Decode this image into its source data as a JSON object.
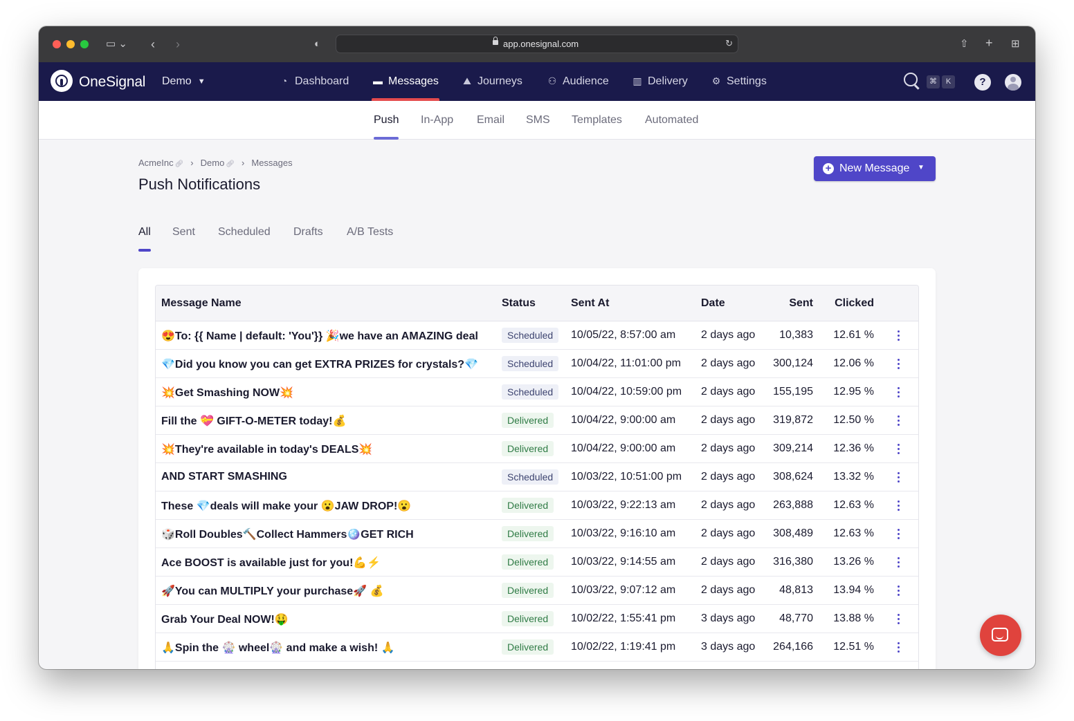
{
  "browser": {
    "url": "app.onesignal.com"
  },
  "topnav": {
    "logo_text": "OneSignal",
    "org": "Demo",
    "items": [
      {
        "label": "Dashboard",
        "icon": "dashboard-icon"
      },
      {
        "label": "Messages",
        "icon": "messages-icon"
      },
      {
        "label": "Journeys",
        "icon": "journeys-icon"
      },
      {
        "label": "Audience",
        "icon": "audience-icon"
      },
      {
        "label": "Delivery",
        "icon": "delivery-icon"
      },
      {
        "label": "Settings",
        "icon": "gear-icon"
      }
    ],
    "shortcut_keys": [
      "⌘",
      "K"
    ],
    "help_label": "?"
  },
  "subnav": {
    "items": [
      "Push",
      "In-App",
      "Email",
      "SMS",
      "Templates",
      "Automated"
    ],
    "active": "Push"
  },
  "breadcrumb": [
    "AcmeInc",
    "Demo",
    "Messages"
  ],
  "page_title": "Push Notifications",
  "new_message_label": "New Message",
  "tabs": {
    "items": [
      "All",
      "Sent",
      "Scheduled",
      "Drafts",
      "A/B Tests"
    ],
    "active": "All"
  },
  "table": {
    "columns": [
      "Message Name",
      "Status",
      "Sent At",
      "Date",
      "Sent",
      "Clicked"
    ],
    "rows": [
      {
        "name": "😍To: {{ Name | default: 'You'}} 🎉we have an AMAZING deal",
        "status": "Scheduled",
        "sent_at": "10/05/22, 8:57:00 am",
        "date": "2 days ago",
        "sent": "10,383",
        "clicked": "12.61 %"
      },
      {
        "name": "💎Did you know you can get EXTRA PRIZES for crystals?💎",
        "status": "Scheduled",
        "sent_at": "10/04/22, 11:01:00 pm",
        "date": "2 days ago",
        "sent": "300,124",
        "clicked": "12.06 %"
      },
      {
        "name": "💥Get Smashing NOW💥",
        "status": "Scheduled",
        "sent_at": "10/04/22, 10:59:00 pm",
        "date": "2 days ago",
        "sent": "155,195",
        "clicked": "12.95 %"
      },
      {
        "name": "Fill the 💝 GIFT-O-METER today!💰",
        "status": "Delivered",
        "sent_at": "10/04/22, 9:00:00 am",
        "date": "2 days ago",
        "sent": "319,872",
        "clicked": "12.50 %"
      },
      {
        "name": "💥They're available in today's DEALS💥",
        "status": "Delivered",
        "sent_at": "10/04/22, 9:00:00 am",
        "date": "2 days ago",
        "sent": "309,214",
        "clicked": "12.36 %"
      },
      {
        "name": "AND START SMASHING",
        "status": "Scheduled",
        "sent_at": "10/03/22, 10:51:00 pm",
        "date": "2 days ago",
        "sent": "308,624",
        "clicked": "13.32 %"
      },
      {
        "name": "These 💎deals will make your 😮JAW DROP!😮",
        "status": "Delivered",
        "sent_at": "10/03/22, 9:22:13 am",
        "date": "2 days ago",
        "sent": "263,888",
        "clicked": "12.63 %"
      },
      {
        "name": "🎲Roll Doubles🔨Collect Hammers🪩GET RICH",
        "status": "Delivered",
        "sent_at": "10/03/22, 9:16:10 am",
        "date": "2 days ago",
        "sent": "308,489",
        "clicked": "12.63 %"
      },
      {
        "name": "Ace BOOST is available just for you!💪⚡",
        "status": "Delivered",
        "sent_at": "10/03/22, 9:14:55 am",
        "date": "2 days ago",
        "sent": "316,380",
        "clicked": "13.26 %"
      },
      {
        "name": "🚀You can MULTIPLY your purchase🚀 💰",
        "status": "Delivered",
        "sent_at": "10/03/22, 9:07:12 am",
        "date": "2 days ago",
        "sent": "48,813",
        "clicked": "13.94 %"
      },
      {
        "name": "Grab Your Deal NOW!🤑",
        "status": "Delivered",
        "sent_at": "10/02/22, 1:55:41 pm",
        "date": "3 days ago",
        "sent": "48,770",
        "clicked": "13.88 %"
      },
      {
        "name": "🙏Spin the 🎡 wheel🎡 and make a wish! 🙏",
        "status": "Delivered",
        "sent_at": "10/02/22, 1:19:41 pm",
        "date": "3 days ago",
        "sent": "264,166",
        "clicked": "12.51 %"
      }
    ]
  },
  "colors": {
    "nav_bg": "#1a1a4b",
    "accent": "#4f46c8",
    "nav_active": "#e54b4d",
    "chat": "#e0433d"
  }
}
